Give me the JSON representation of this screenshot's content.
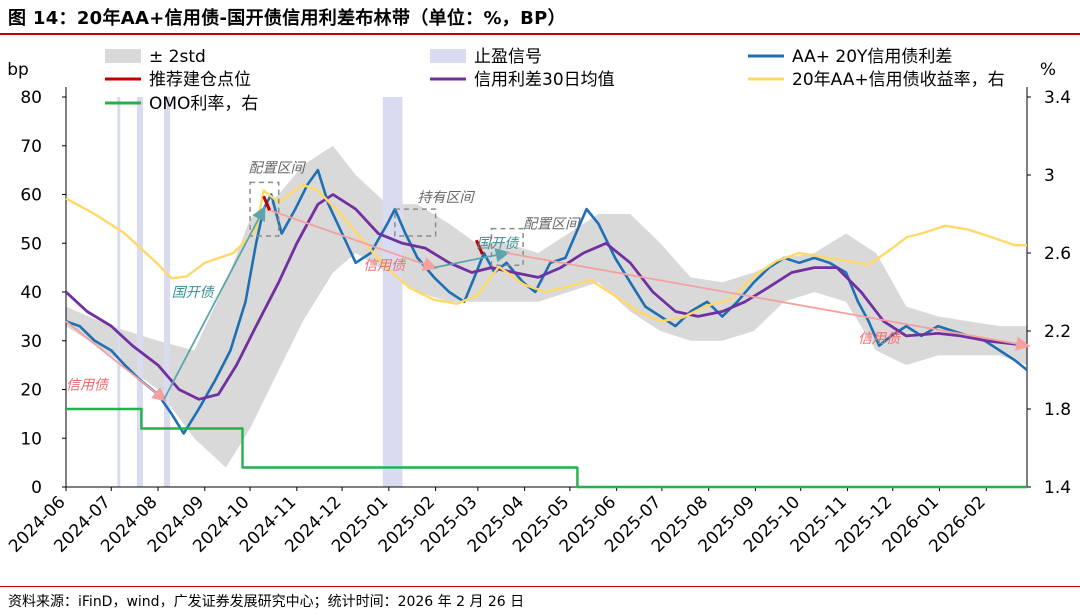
{
  "title": "图 14：20年AA+信用债-国开债信用利差布林带（单位：%，BP）",
  "source": "资料来源：iFinD，wind，广发证券发展研究中心；统计时间：2026 年 2 月 26 日",
  "colors": {
    "spread": "#1f6fb5",
    "ma30": "#7030a0",
    "yield": "#ffd966",
    "omo": "#22b14c",
    "band": "#d9d9d9",
    "stop": "#d9dcf0",
    "entry": "#c00000",
    "trend": "#f4a0a0",
    "trend_teal": "#5aa6ac",
    "box": "#8c8c8c"
  },
  "chart_data": {
    "type": "line",
    "y_left": {
      "unit": "bp",
      "min": 0,
      "max": 80,
      "ticks": [
        0,
        10,
        20,
        30,
        40,
        50,
        60,
        70,
        80
      ]
    },
    "y_right": {
      "unit": "%",
      "min": 1.4,
      "max": 3.4,
      "ticks": [
        "1.4",
        "1.8",
        "2.2",
        "2.6",
        "3",
        "3.4"
      ]
    },
    "x_ticks": [
      "2024-06",
      "2024-07",
      "2024-08",
      "2024-09",
      "2024-10",
      "2024-11",
      "2024-12",
      "2025-01",
      "2025-02",
      "2025-03",
      "2025-04",
      "2025-05",
      "2025-06",
      "2025-07",
      "2025-08",
      "2025-09",
      "2025-10",
      "2025-11",
      "2025-12",
      "2026-01",
      "2026-02"
    ],
    "x_range": [
      "2024-06-01",
      "2026-02-28"
    ],
    "legend": [
      {
        "key": "band",
        "label": "± 2std"
      },
      {
        "key": "stop",
        "label": "止盈信号"
      },
      {
        "key": "spread",
        "label": "AA+ 20Y信用债利差"
      },
      {
        "key": "entry",
        "label": "推荐建仓点位"
      },
      {
        "key": "ma30",
        "label": "信用利差30日均值"
      },
      {
        "key": "yield",
        "label": "20年AA+信用债收益率，右"
      },
      {
        "key": "omo",
        "label": "OMO利率，右"
      }
    ],
    "series": [
      {
        "name": "AA+ 20Y信用债利差",
        "key": "spread",
        "axis": "left",
        "points": [
          [
            "2024-06-01",
            34
          ],
          [
            "2024-06-10",
            33
          ],
          [
            "2024-06-20",
            30
          ],
          [
            "2024-07-01",
            28
          ],
          [
            "2024-07-10",
            25
          ],
          [
            "2024-07-20",
            22
          ],
          [
            "2024-08-01",
            19
          ],
          [
            "2024-08-10",
            15
          ],
          [
            "2024-08-18",
            11
          ],
          [
            "2024-08-28",
            16
          ],
          [
            "2024-09-08",
            22
          ],
          [
            "2024-09-18",
            28
          ],
          [
            "2024-09-28",
            38
          ],
          [
            "2024-10-05",
            50
          ],
          [
            "2024-10-10",
            57
          ],
          [
            "2024-10-15",
            60
          ],
          [
            "2024-10-22",
            52
          ],
          [
            "2024-10-31",
            57
          ],
          [
            "2024-11-08",
            62
          ],
          [
            "2024-11-15",
            65
          ],
          [
            "2024-11-22",
            58
          ],
          [
            "2024-12-01",
            52
          ],
          [
            "2024-12-10",
            46
          ],
          [
            "2024-12-20",
            48
          ],
          [
            "2024-12-31",
            54
          ],
          [
            "2025-01-05",
            57
          ],
          [
            "2025-01-12",
            52
          ],
          [
            "2025-01-20",
            47
          ],
          [
            "2025-01-31",
            43
          ],
          [
            "2025-02-10",
            40
          ],
          [
            "2025-02-20",
            38
          ],
          [
            "2025-02-28",
            44
          ],
          [
            "2025-03-05",
            48
          ],
          [
            "2025-03-12",
            44
          ],
          [
            "2025-03-20",
            46
          ],
          [
            "2025-03-31",
            42
          ],
          [
            "2025-04-08",
            40
          ],
          [
            "2025-04-18",
            46
          ],
          [
            "2025-04-28",
            47
          ],
          [
            "2025-05-05",
            52
          ],
          [
            "2025-05-12",
            57
          ],
          [
            "2025-05-20",
            54
          ],
          [
            "2025-05-31",
            47
          ],
          [
            "2025-06-10",
            42
          ],
          [
            "2025-06-20",
            37
          ],
          [
            "2025-06-30",
            35
          ],
          [
            "2025-07-10",
            33
          ],
          [
            "2025-07-20",
            36
          ],
          [
            "2025-07-31",
            38
          ],
          [
            "2025-08-10",
            35
          ],
          [
            "2025-08-20",
            38
          ],
          [
            "2025-08-31",
            42
          ],
          [
            "2025-09-10",
            45
          ],
          [
            "2025-09-20",
            47
          ],
          [
            "2025-09-30",
            46
          ],
          [
            "2025-10-10",
            47
          ],
          [
            "2025-10-20",
            46
          ],
          [
            "2025-10-31",
            44
          ],
          [
            "2025-11-08",
            38
          ],
          [
            "2025-11-15",
            34
          ],
          [
            "2025-11-22",
            29
          ],
          [
            "2025-11-30",
            31
          ],
          [
            "2025-12-10",
            33
          ],
          [
            "2025-12-20",
            31
          ],
          [
            "2025-12-31",
            33
          ],
          [
            "2026-01-10",
            32
          ],
          [
            "2026-01-20",
            31
          ],
          [
            "2026-01-31",
            30
          ],
          [
            "2026-02-10",
            28
          ],
          [
            "2026-02-20",
            26
          ],
          [
            "2026-02-28",
            24
          ]
        ]
      },
      {
        "name": "信用利差30日均值",
        "key": "ma30",
        "axis": "left",
        "points": [
          [
            "2024-06-01",
            40
          ],
          [
            "2024-06-15",
            36
          ],
          [
            "2024-07-01",
            33
          ],
          [
            "2024-07-15",
            29
          ],
          [
            "2024-08-01",
            25
          ],
          [
            "2024-08-15",
            20
          ],
          [
            "2024-08-28",
            18
          ],
          [
            "2024-09-10",
            19
          ],
          [
            "2024-09-22",
            25
          ],
          [
            "2024-10-05",
            33
          ],
          [
            "2024-10-20",
            42
          ],
          [
            "2024-11-01",
            50
          ],
          [
            "2024-11-15",
            58
          ],
          [
            "2024-11-25",
            60
          ],
          [
            "2024-12-10",
            57
          ],
          [
            "2024-12-25",
            52
          ],
          [
            "2025-01-10",
            50
          ],
          [
            "2025-01-25",
            49
          ],
          [
            "2025-02-10",
            46
          ],
          [
            "2025-02-25",
            44
          ],
          [
            "2025-03-10",
            45
          ],
          [
            "2025-03-25",
            44
          ],
          [
            "2025-04-10",
            43
          ],
          [
            "2025-04-25",
            45
          ],
          [
            "2025-05-10",
            48
          ],
          [
            "2025-05-25",
            50
          ],
          [
            "2025-06-10",
            46
          ],
          [
            "2025-06-25",
            40
          ],
          [
            "2025-07-10",
            36
          ],
          [
            "2025-07-25",
            35
          ],
          [
            "2025-08-10",
            36
          ],
          [
            "2025-08-25",
            38
          ],
          [
            "2025-09-10",
            41
          ],
          [
            "2025-09-25",
            44
          ],
          [
            "2025-10-10",
            45
          ],
          [
            "2025-10-25",
            45
          ],
          [
            "2025-11-10",
            40
          ],
          [
            "2025-11-25",
            34
          ],
          [
            "2025-12-10",
            31
          ],
          [
            "2025-12-31",
            31.5
          ],
          [
            "2026-01-15",
            31
          ],
          [
            "2026-02-01",
            30
          ],
          [
            "2026-02-15",
            29.5
          ],
          [
            "2026-02-28",
            29
          ]
        ]
      },
      {
        "name": "20年AA+信用债收益率，右",
        "key": "yield",
        "axis": "right",
        "points": [
          [
            "2024-06-01",
            2.88
          ],
          [
            "2024-06-20",
            2.8
          ],
          [
            "2024-07-10",
            2.7
          ],
          [
            "2024-07-31",
            2.55
          ],
          [
            "2024-08-10",
            2.47
          ],
          [
            "2024-08-20",
            2.48
          ],
          [
            "2024-09-01",
            2.55
          ],
          [
            "2024-09-20",
            2.6
          ],
          [
            "2024-10-05",
            2.72
          ],
          [
            "2024-10-10",
            2.92
          ],
          [
            "2024-10-20",
            2.86
          ],
          [
            "2024-11-05",
            2.95
          ],
          [
            "2024-11-15",
            2.92
          ],
          [
            "2024-11-30",
            2.8
          ],
          [
            "2024-12-15",
            2.66
          ],
          [
            "2024-12-31",
            2.52
          ],
          [
            "2025-01-15",
            2.42
          ],
          [
            "2025-01-31",
            2.36
          ],
          [
            "2025-02-15",
            2.34
          ],
          [
            "2025-02-28",
            2.38
          ],
          [
            "2025-03-15",
            2.53
          ],
          [
            "2025-03-31",
            2.44
          ],
          [
            "2025-04-15",
            2.4
          ],
          [
            "2025-05-01",
            2.43
          ],
          [
            "2025-05-15",
            2.46
          ],
          [
            "2025-05-31",
            2.38
          ],
          [
            "2025-06-15",
            2.3
          ],
          [
            "2025-06-30",
            2.25
          ],
          [
            "2025-07-15",
            2.27
          ],
          [
            "2025-07-31",
            2.33
          ],
          [
            "2025-08-15",
            2.36
          ],
          [
            "2025-08-31",
            2.48
          ],
          [
            "2025-09-15",
            2.56
          ],
          [
            "2025-09-30",
            2.6
          ],
          [
            "2025-10-15",
            2.58
          ],
          [
            "2025-10-31",
            2.56
          ],
          [
            "2025-11-15",
            2.54
          ],
          [
            "2025-11-30",
            2.62
          ],
          [
            "2025-12-10",
            2.68
          ],
          [
            "2025-12-20",
            2.7
          ],
          [
            "2026-01-05",
            2.74
          ],
          [
            "2026-01-20",
            2.72
          ],
          [
            "2026-02-05",
            2.68
          ],
          [
            "2026-02-20",
            2.64
          ],
          [
            "2026-02-28",
            2.64
          ]
        ]
      },
      {
        "name": "OMO利率，右",
        "key": "omo",
        "axis": "right",
        "step": true,
        "points": [
          [
            "2024-06-01",
            1.8
          ],
          [
            "2024-07-21",
            1.7
          ],
          [
            "2024-09-26",
            1.5
          ],
          [
            "2025-05-06",
            1.4
          ],
          [
            "2026-02-28",
            1.4
          ]
        ]
      }
    ],
    "band": {
      "name": "± 2std",
      "axis": "left",
      "upper": [
        [
          "2024-06-01",
          37
        ],
        [
          "2024-07-01",
          33
        ],
        [
          "2024-08-01",
          30
        ],
        [
          "2024-08-25",
          28
        ],
        [
          "2024-09-15",
          42
        ],
        [
          "2024-10-01",
          55
        ],
        [
          "2024-10-20",
          60
        ],
        [
          "2024-11-05",
          66
        ],
        [
          "2024-11-25",
          70
        ],
        [
          "2024-12-10",
          64
        ],
        [
          "2024-12-31",
          58
        ],
        [
          "2025-01-20",
          58
        ],
        [
          "2025-02-10",
          54
        ],
        [
          "2025-02-28",
          50
        ],
        [
          "2025-03-20",
          50
        ],
        [
          "2025-04-10",
          48
        ],
        [
          "2025-04-30",
          52
        ],
        [
          "2025-05-20",
          56
        ],
        [
          "2025-06-10",
          56
        ],
        [
          "2025-06-30",
          50
        ],
        [
          "2025-07-20",
          43
        ],
        [
          "2025-08-10",
          42
        ],
        [
          "2025-08-31",
          44
        ],
        [
          "2025-09-20",
          47
        ],
        [
          "2025-10-10",
          48
        ],
        [
          "2025-10-31",
          52
        ],
        [
          "2025-11-20",
          48
        ],
        [
          "2025-12-10",
          37
        ],
        [
          "2025-12-31",
          35
        ],
        [
          "2026-01-20",
          34
        ],
        [
          "2026-02-10",
          33
        ],
        [
          "2026-02-28",
          33
        ]
      ],
      "lower": [
        [
          "2024-06-01",
          33
        ],
        [
          "2024-07-01",
          27
        ],
        [
          "2024-08-01",
          20
        ],
        [
          "2024-08-25",
          10
        ],
        [
          "2024-09-15",
          4
        ],
        [
          "2024-10-01",
          12
        ],
        [
          "2024-10-20",
          24
        ],
        [
          "2024-11-05",
          34
        ],
        [
          "2024-11-25",
          44
        ],
        [
          "2024-12-10",
          48
        ],
        [
          "2024-12-31",
          44
        ],
        [
          "2025-01-20",
          40
        ],
        [
          "2025-02-10",
          38
        ],
        [
          "2025-02-28",
          38
        ],
        [
          "2025-03-20",
          38
        ],
        [
          "2025-04-10",
          38
        ],
        [
          "2025-04-30",
          40
        ],
        [
          "2025-05-20",
          42
        ],
        [
          "2025-06-10",
          36
        ],
        [
          "2025-06-30",
          32
        ],
        [
          "2025-07-20",
          30
        ],
        [
          "2025-08-10",
          30
        ],
        [
          "2025-08-31",
          32
        ],
        [
          "2025-09-20",
          38
        ],
        [
          "2025-10-10",
          40
        ],
        [
          "2025-10-31",
          38
        ],
        [
          "2025-11-20",
          28
        ],
        [
          "2025-12-10",
          25
        ],
        [
          "2025-12-31",
          27
        ],
        [
          "2026-01-20",
          27
        ],
        [
          "2026-02-10",
          27
        ],
        [
          "2026-02-28",
          25
        ]
      ]
    },
    "stop_signals": [
      [
        "2024-07-05",
        "2024-07-07"
      ],
      [
        "2024-07-18",
        "2024-07-22"
      ],
      [
        "2024-08-05",
        "2024-08-09"
      ],
      [
        "2024-12-28",
        "2025-01-10"
      ]
    ],
    "entry_points": [
      [
        "2024-10-12",
        58
      ],
      [
        "2025-03-02",
        49
      ]
    ],
    "trend_arrows": [
      {
        "color": "trend",
        "from": [
          "2024-06-01",
          34
        ],
        "to": [
          "2024-08-05",
          18
        ]
      },
      {
        "color": "trend_teal",
        "from": [
          "2024-08-05",
          18
        ],
        "to": [
          "2024-10-10",
          57
        ]
      },
      {
        "color": "trend",
        "from": [
          "2024-10-12",
          57
        ],
        "to": [
          "2025-01-31",
          45
        ]
      },
      {
        "color": "trend_teal",
        "from": [
          "2025-01-31",
          45
        ],
        "to": [
          "2025-03-20",
          48
        ]
      },
      {
        "color": "trend",
        "from": [
          "2025-03-20",
          48
        ],
        "to": [
          "2026-02-28",
          29
        ]
      }
    ],
    "annotations": [
      {
        "text": "信用债",
        "style": "red",
        "at": [
          "2024-06-01",
          20
        ]
      },
      {
        "text": "国开债",
        "style": "teal",
        "at": [
          "2024-08-10",
          39
        ]
      },
      {
        "text": "配置区间",
        "style": "gray",
        "at": [
          "2024-09-30",
          64.5
        ]
      },
      {
        "text": "持有区间",
        "style": "gray",
        "at": [
          "2025-01-20",
          58.5
        ]
      },
      {
        "text": "信用债",
        "style": "red",
        "at": [
          "2024-12-15",
          44.5
        ]
      },
      {
        "text": "国开债",
        "style": "teal",
        "at": [
          "2025-02-28",
          49
        ]
      },
      {
        "text": "配置区间",
        "style": "gray",
        "at": [
          "2025-03-31",
          53
        ]
      },
      {
        "text": "信用债",
        "style": "red",
        "at": [
          "2025-11-08",
          29.5
        ]
      }
    ],
    "boxes": [
      {
        "from": [
          "2024-10-01",
          62.5
        ],
        "to": [
          "2024-10-20",
          51.5
        ]
      },
      {
        "from": [
          "2025-01-05",
          57
        ],
        "to": [
          "2025-02-01",
          51.5
        ]
      },
      {
        "from": [
          "2025-03-10",
          53
        ],
        "to": [
          "2025-03-31",
          45.5
        ]
      }
    ],
    "axis_unit_labels": {
      "left": "bp",
      "right": "%"
    }
  }
}
